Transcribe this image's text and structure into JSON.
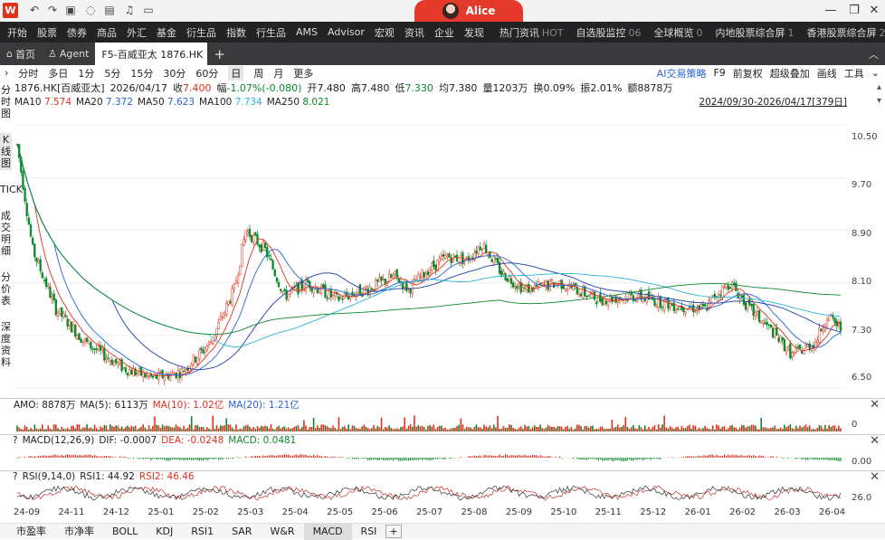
{
  "window": {
    "logo": "W",
    "user_name": "Alice"
  },
  "menu": {
    "items": [
      "开始",
      "股票",
      "债券",
      "商品",
      "外汇",
      "基金",
      "衍生品",
      "指数",
      "行生品",
      "AMS",
      "Advisor",
      "宏观",
      "资讯",
      "企业",
      "发现"
    ],
    "right": [
      {
        "label": "热门资讯",
        "badge": "HOT"
      },
      {
        "label": "自选股监控",
        "badge": "06"
      },
      {
        "label": "全球概览",
        "badge": "0"
      },
      {
        "label": "内地股票综合屏",
        "badge": "1"
      },
      {
        "label": "香港股票综合屏",
        "badge": "2"
      }
    ]
  },
  "tabs": {
    "home": "首页",
    "agent": "Agent",
    "active": "F5-百威亚太 1876.HK",
    "add": "+"
  },
  "periods": [
    "分时",
    "多日",
    "1分",
    "5分",
    "15分",
    "30分",
    "60分",
    "日",
    "周",
    "月",
    "更多"
  ],
  "selected_period": "日",
  "right_controls": [
    "AI交易策略",
    "F9",
    "前复权",
    "超级叠加",
    "画线",
    "工具"
  ],
  "info": {
    "name": "1876.HK[百威亚太]",
    "date": "2026/04/17",
    "close_label": "收",
    "close": "7.400",
    "change_label": "幅",
    "change": "-1.07%(-0.080)",
    "open_label": "开",
    "open": "7.480",
    "high_label": "高",
    "high": "7.480",
    "low_label": "低",
    "low": "7.330",
    "avg_label": "均",
    "avg": "7.380",
    "vol_label": "量",
    "vol": "1203万",
    "turn_label": "换",
    "turn": "0.09%",
    "amp_label": "振",
    "amp": "2.01%",
    "amt_label": "额",
    "amt": "8878万"
  },
  "ma": {
    "ma10": "MA10",
    "ma10v": "7.574",
    "ma20": "MA20",
    "ma20v": "7.372",
    "ma50": "MA50",
    "ma50v": "7.623",
    "ma100": "MA100",
    "ma100v": "7.734",
    "ma250": "MA250",
    "ma250v": "8.021",
    "range": "2024/09/30-2026/04/17[379日]"
  },
  "left_nav": [
    "分时图",
    "K线图",
    "TICK",
    "成交明细",
    "分价表",
    "深度资料"
  ],
  "price_axis": [
    "10.50",
    "9.70",
    "8.90",
    "8.10",
    "7.30",
    "6.50"
  ],
  "volume_pane": {
    "label": "AMO: 8878万",
    "ma5_label": "MA(5): 6113万",
    "ma10_label": "MA(10): 1.02亿",
    "ma20_label": "MA(20): 1.21亿",
    "axis": "0"
  },
  "macd_pane": {
    "label": "MACD(12,26,9)",
    "dif": "DIF: -0.0007",
    "dea": "DEA: -0.0248",
    "macd": "MACD: 0.0481",
    "axis": "0.00"
  },
  "rsi_pane": {
    "label": "RSI(9,14,0)",
    "rsi1": "RSI1: 44.92",
    "rsi2": "RSI2: 46.46",
    "axis": "26.0"
  },
  "x_axis": [
    "24-09",
    "24-11",
    "24-12",
    "25-01",
    "25-02",
    "25-03",
    "25-04",
    "25-05",
    "25-06",
    "25-07",
    "25-08",
    "25-09",
    "25-10",
    "25-11",
    "25-12",
    "26-01",
    "26-02",
    "26-03",
    "26-04"
  ],
  "bottom_tabs": [
    "市盈率",
    "市净率",
    "BOLL",
    "KDJ",
    "RSI1",
    "SAR",
    "W&R",
    "MACD",
    "RSI",
    "+"
  ],
  "selected_bottom": "MACD",
  "colors": {
    "up": "#e0301e",
    "down": "#0a8a2a",
    "ma10": "#e0301e",
    "ma20": "#2962d9",
    "ma50": "#2962d9",
    "ma100": "#27b6d9",
    "ma250": "#0a8a2a"
  }
}
